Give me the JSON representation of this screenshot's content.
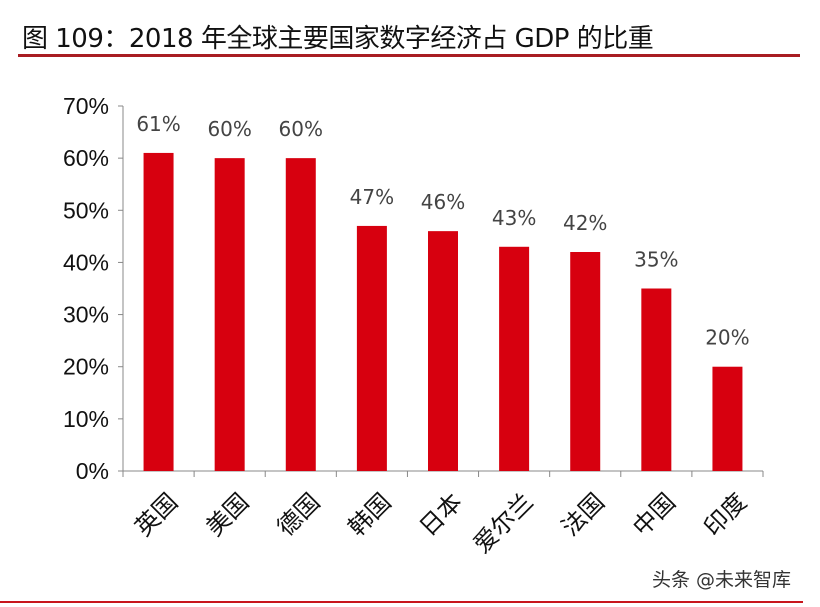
{
  "title": "图 109：2018 年全球主要国家数字经济占 GDP 的比重",
  "watermark": "头条 @未来智库",
  "colors": {
    "bar": "#d7000f",
    "title_rule": "#a81c22",
    "axis": "#888888"
  },
  "chart_data": {
    "type": "bar",
    "title": "图 109：2018 年全球主要国家数字经济占 GDP 的比重",
    "xlabel": "",
    "ylabel": "",
    "categories": [
      "英国",
      "美国",
      "德国",
      "韩国",
      "日本",
      "爱尔兰",
      "法国",
      "中国",
      "印度"
    ],
    "values": [
      61,
      60,
      60,
      47,
      46,
      43,
      42,
      35,
      20
    ],
    "data_labels": [
      "61%",
      "60%",
      "60%",
      "47%",
      "46%",
      "43%",
      "42%",
      "35%",
      "20%"
    ],
    "ylim": [
      0,
      70
    ],
    "yticks": [
      "0%",
      "10%",
      "20%",
      "30%",
      "40%",
      "50%",
      "60%",
      "70%"
    ],
    "grid": false,
    "legend": "none"
  }
}
